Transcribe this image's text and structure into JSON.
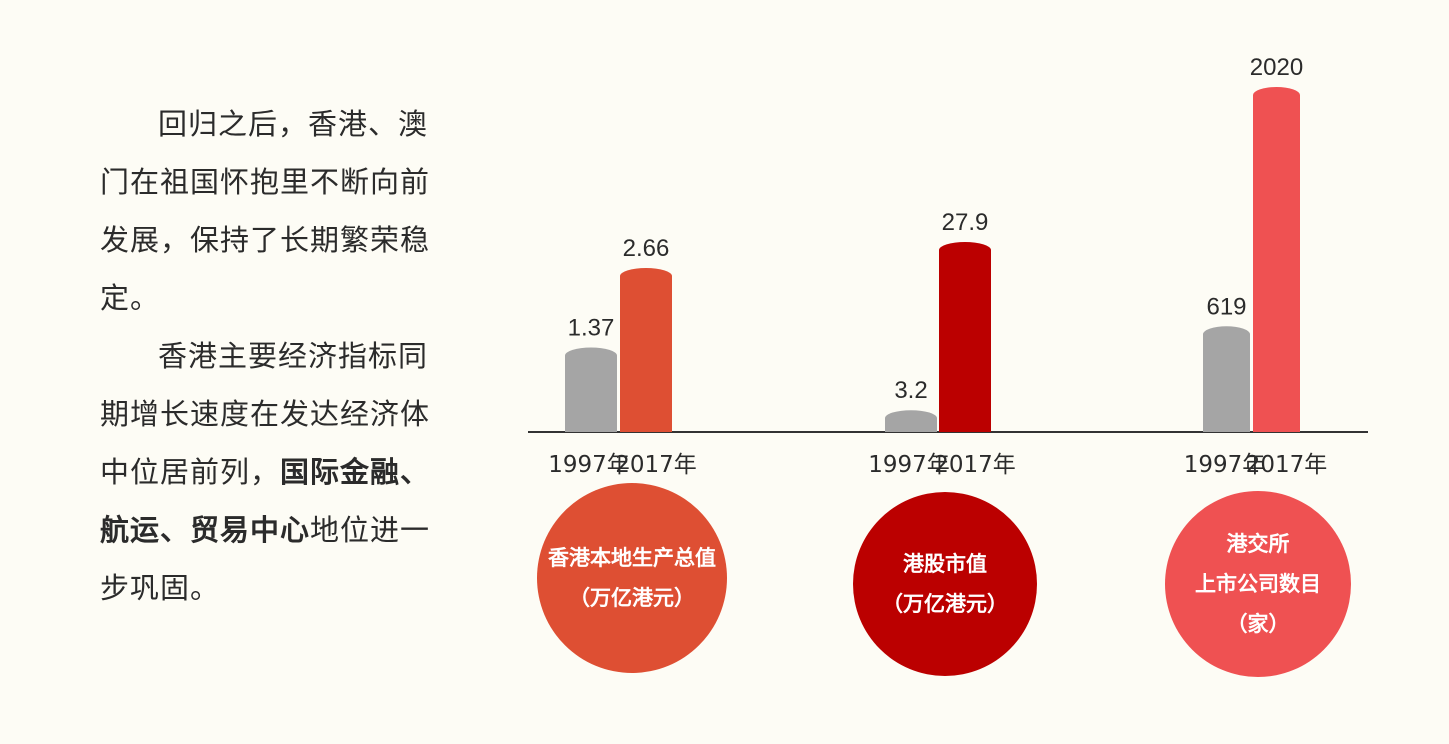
{
  "paragraph1": "回归之后，香港、澳门在祖国怀抱里不断向前发展，保持了长期繁荣稳定。",
  "paragraph2_plain": "香港主要经济指标同期增长速度在发达经济体中位居前列，",
  "paragraph2_bold": "国际金融、航运、贸易中心",
  "paragraph2_tail": "地位进一步巩固。",
  "chart_data": [
    {
      "type": "bar",
      "categories": [
        "1997年",
        "2017年"
      ],
      "values": [
        1.37,
        2.66
      ],
      "labels": [
        "1.37",
        "2.66"
      ],
      "title_lines": [
        "香港本地生产总值",
        "（万亿港元）"
      ],
      "color_1997": "#a5a5a5",
      "color_2017": "#de4f33",
      "circle_color": "#de4f33"
    },
    {
      "type": "bar",
      "categories": [
        "1997年",
        "2017年"
      ],
      "values": [
        3.2,
        27.9
      ],
      "labels": [
        "3.2",
        "27.9"
      ],
      "title_lines": [
        "港股市值",
        "（万亿港元）"
      ],
      "color_1997": "#a5a5a5",
      "color_2017": "#bb0000",
      "circle_color": "#bb0000"
    },
    {
      "type": "bar",
      "categories": [
        "1997年",
        "2017年"
      ],
      "values": [
        619,
        2020
      ],
      "labels": [
        "619",
        "2020"
      ],
      "title_lines": [
        "港交所",
        "上市公司数目",
        "（家）"
      ],
      "color_1997": "#a5a5a5",
      "color_2017": "#ef5152",
      "circle_color": "#ef5152"
    }
  ]
}
